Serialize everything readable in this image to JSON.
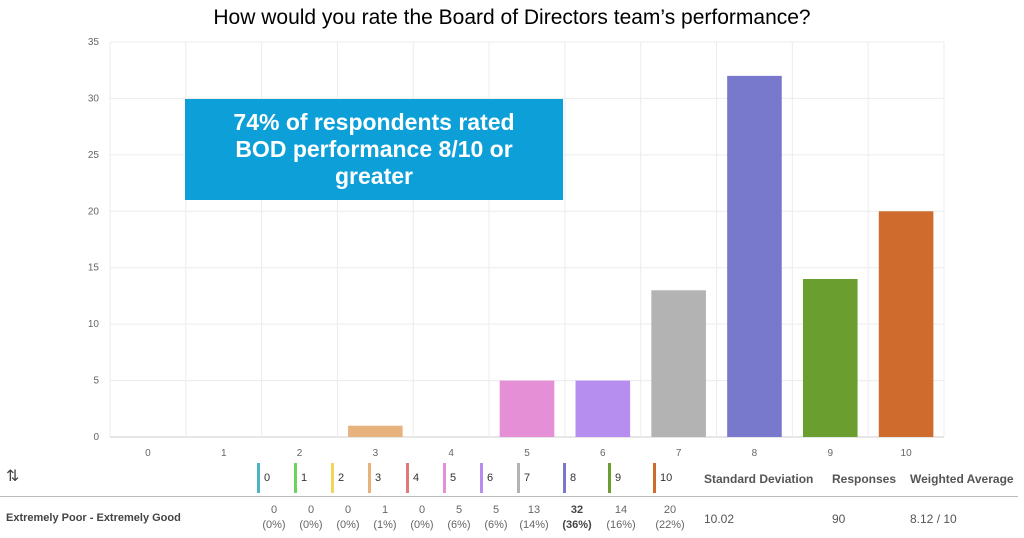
{
  "chart_data": {
    "type": "bar",
    "title": "How would you rate the Board of Directors team’s performance?",
    "categories": [
      "0",
      "1",
      "2",
      "3",
      "4",
      "5",
      "6",
      "7",
      "8",
      "9",
      "10"
    ],
    "values": [
      0,
      0,
      0,
      1,
      0,
      5,
      5,
      13,
      32,
      14,
      20
    ],
    "colors": [
      "#4bb5c1",
      "#6bd35f",
      "#f1d55a",
      "#e8b27e",
      "#e07a7a",
      "#e48fd6",
      "#b58ef0",
      "#b3b3b3",
      "#7878cd",
      "#6a9e2e",
      "#cf6b2d"
    ],
    "ylim": [
      0,
      35
    ],
    "yticks": [
      0,
      5,
      10,
      15,
      20,
      25,
      30,
      35
    ],
    "grid": true,
    "annotation": "74% of respondents rated BOD performance 8/10 or greater"
  },
  "table": {
    "row_label": "Extremely Poor - Extremely Good",
    "legend": [
      "0",
      "1",
      "2",
      "3",
      "4",
      "5",
      "6",
      "7",
      "8",
      "9",
      "10"
    ],
    "counts": [
      "0",
      "0",
      "0",
      "1",
      "0",
      "5",
      "5",
      "13",
      "32",
      "14",
      "20"
    ],
    "percents": [
      "(0%)",
      "(0%)",
      "(0%)",
      "(1%)",
      "(0%)",
      "(6%)",
      "(6%)",
      "(14%)",
      "(36%)",
      "(16%)",
      "(22%)"
    ],
    "headers": {
      "std_dev": "Standard Deviation",
      "responses": "Responses",
      "weighted_avg": "Weighted Average"
    },
    "values": {
      "std_dev": "10.02",
      "responses": "90",
      "weighted_avg": "8.12 / 10"
    },
    "swap_icon": "swap-arrows-icon"
  }
}
